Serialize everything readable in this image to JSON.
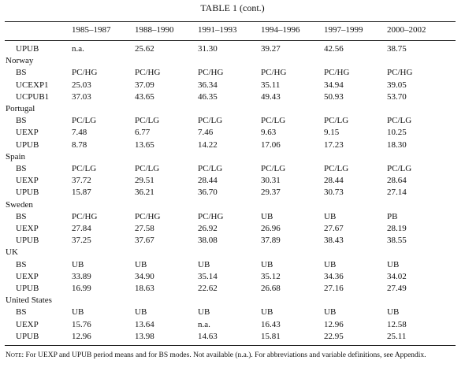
{
  "title": "TABLE 1 (cont.)",
  "columns": [
    "1985–1987",
    "1988–1990",
    "1991–1993",
    "1994–1996",
    "1997–1999",
    "2000–2002"
  ],
  "lead_rows": [
    {
      "label": "UPUB",
      "cells": [
        "n.a.",
        "25.62",
        "31.30",
        "39.27",
        "42.56",
        "38.75"
      ]
    }
  ],
  "groups": [
    {
      "country": "Norway",
      "rows": [
        {
          "label": "BS",
          "cells": [
            "PC/HG",
            "PC/HG",
            "PC/HG",
            "PC/HG",
            "PC/HG",
            "PC/HG"
          ]
        },
        {
          "label": "UCEXP1",
          "cells": [
            "25.03",
            "37.09",
            "36.34",
            "35.11",
            "34.94",
            "39.05"
          ]
        },
        {
          "label": "UCPUB1",
          "cells": [
            "37.03",
            "43.65",
            "46.35",
            "49.43",
            "50.93",
            "53.70"
          ]
        }
      ]
    },
    {
      "country": "Portugal",
      "rows": [
        {
          "label": "BS",
          "cells": [
            "PC/LG",
            "PC/LG",
            "PC/LG",
            "PC/LG",
            "PC/LG",
            "PC/LG"
          ]
        },
        {
          "label": "UEXP",
          "cells": [
            "7.48",
            "6.77",
            "7.46",
            "9.63",
            "9.15",
            "10.25"
          ]
        },
        {
          "label": "UPUB",
          "cells": [
            "8.78",
            "13.65",
            "14.22",
            "17.06",
            "17.23",
            "18.30"
          ]
        }
      ]
    },
    {
      "country": "Spain",
      "rows": [
        {
          "label": "BS",
          "cells": [
            "PC/LG",
            "PC/LG",
            "PC/LG",
            "PC/LG",
            "PC/LG",
            "PC/LG"
          ]
        },
        {
          "label": "UEXP",
          "cells": [
            "37.72",
            "29.51",
            "28.44",
            "30.31",
            "28.44",
            "28.64"
          ]
        },
        {
          "label": "UPUB",
          "cells": [
            "15.87",
            "36.21",
            "36.70",
            "29.37",
            "30.73",
            "27.14"
          ]
        }
      ]
    },
    {
      "country": "Sweden",
      "rows": [
        {
          "label": "BS",
          "cells": [
            "PC/HG",
            "PC/HG",
            "PC/HG",
            "UB",
            "UB",
            "PB"
          ]
        },
        {
          "label": "UEXP",
          "cells": [
            "27.84",
            "27.58",
            "26.92",
            "26.96",
            "27.67",
            "28.19"
          ]
        },
        {
          "label": "UPUB",
          "cells": [
            "37.25",
            "37.67",
            "38.08",
            "37.89",
            "38.43",
            "38.55"
          ]
        }
      ]
    },
    {
      "country": "UK",
      "rows": [
        {
          "label": "BS",
          "cells": [
            "UB",
            "UB",
            "UB",
            "UB",
            "UB",
            "UB"
          ]
        },
        {
          "label": "UEXP",
          "cells": [
            "33.89",
            "34.90",
            "35.14",
            "35.12",
            "34.36",
            "34.02"
          ]
        },
        {
          "label": "UPUB",
          "cells": [
            "16.99",
            "18.63",
            "22.62",
            "26.68",
            "27.16",
            "27.49"
          ]
        }
      ]
    },
    {
      "country": "United States",
      "rows": [
        {
          "label": "BS",
          "cells": [
            "UB",
            "UB",
            "UB",
            "UB",
            "UB",
            "UB"
          ]
        },
        {
          "label": "UEXP",
          "cells": [
            "15.76",
            "13.64",
            "n.a.",
            "16.43",
            "12.96",
            "12.58"
          ]
        },
        {
          "label": "UPUB",
          "cells": [
            "12.96",
            "13.98",
            "14.63",
            "15.81",
            "22.95",
            "25.11"
          ]
        }
      ]
    }
  ],
  "note": {
    "label": "Note:",
    "text": "For UEXP and UPUB period means and for BS modes. Not available (n.a.). For abbreviations and variable definitions, see Appendix."
  }
}
